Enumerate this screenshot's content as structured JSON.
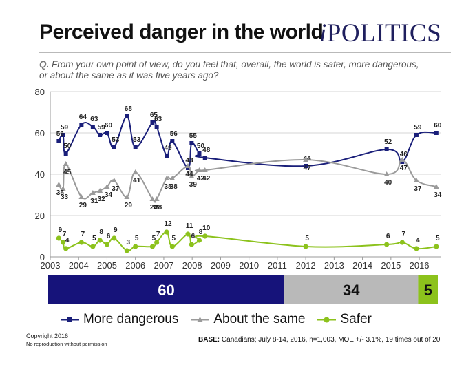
{
  "header": {
    "title": "Perceived danger in the world",
    "brand_i": "i",
    "brand_rest": "POLITICS",
    "question_label": "Q.",
    "question_text": "From your own point of view, do you feel that, overall, the world is safer, more dangerous, or about the same as it was five years ago?"
  },
  "chart_data": {
    "type": "line",
    "xlim": [
      2003,
      2016.75
    ],
    "ylim": [
      0,
      80
    ],
    "x_ticks": [
      "2003",
      "2004",
      "2005",
      "2006",
      "2007",
      "2008",
      "2009",
      "2010",
      "2011",
      "2012",
      "2013",
      "2014",
      "2015",
      "2016"
    ],
    "y_ticks": [
      "0",
      "20",
      "40",
      "60",
      "80"
    ],
    "grid": true,
    "legend_position": "bottom",
    "series": [
      {
        "name": "More dangerous",
        "color": "#1a1f7a",
        "marker": "square",
        "points": [
          [
            2003.3,
            56
          ],
          [
            2003.45,
            59
          ],
          [
            2003.55,
            50
          ],
          [
            2004.1,
            64
          ],
          [
            2004.5,
            63
          ],
          [
            2004.75,
            59
          ],
          [
            2005.0,
            60
          ],
          [
            2005.25,
            53
          ],
          [
            2005.7,
            68
          ],
          [
            2006.0,
            53
          ],
          [
            2006.6,
            65
          ],
          [
            2006.75,
            63
          ],
          [
            2007.1,
            49
          ],
          [
            2007.3,
            56
          ],
          [
            2007.85,
            43
          ],
          [
            2007.98,
            55
          ],
          [
            2008.25,
            50
          ],
          [
            2008.45,
            48
          ],
          [
            2012.0,
            44
          ],
          [
            2014.85,
            52
          ],
          [
            2015.4,
            46
          ],
          [
            2015.9,
            59
          ],
          [
            2016.6,
            60
          ]
        ],
        "labels": [
          [
            "56",
            2003.3,
            56
          ],
          [
            "59",
            2003.45,
            59
          ],
          [
            "50",
            2003.55,
            50
          ],
          [
            "64",
            2004.1,
            64
          ],
          [
            "63",
            2004.5,
            63
          ],
          [
            "59",
            2004.75,
            59
          ],
          [
            "60",
            2005.0,
            60
          ],
          [
            "53",
            2005.25,
            53
          ],
          [
            "68",
            2005.7,
            68
          ],
          [
            "53",
            2006.0,
            53
          ],
          [
            "65",
            2006.6,
            65
          ],
          [
            "63",
            2006.75,
            63
          ],
          [
            "49",
            2007.1,
            49
          ],
          [
            "56",
            2007.3,
            56
          ],
          [
            "43",
            2007.85,
            43
          ],
          [
            "55",
            2007.98,
            55
          ],
          [
            "50",
            2008.25,
            50
          ],
          [
            "48",
            2008.45,
            48
          ],
          [
            "44",
            2012.0,
            44
          ],
          [
            "52",
            2014.85,
            52
          ],
          [
            "46",
            2015.4,
            46
          ],
          [
            "59",
            2015.9,
            59
          ],
          [
            "60",
            2016.6,
            60
          ]
        ]
      },
      {
        "name": "About the same",
        "color": "#9a9a9a",
        "marker": "triangle",
        "points": [
          [
            2003.3,
            35
          ],
          [
            2003.45,
            33
          ],
          [
            2003.55,
            45
          ],
          [
            2004.1,
            29
          ],
          [
            2004.5,
            31
          ],
          [
            2004.75,
            32
          ],
          [
            2005.0,
            34
          ],
          [
            2005.25,
            37
          ],
          [
            2005.7,
            29
          ],
          [
            2006.0,
            41
          ],
          [
            2006.6,
            28
          ],
          [
            2006.75,
            28
          ],
          [
            2007.1,
            38
          ],
          [
            2007.3,
            38
          ],
          [
            2007.85,
            44
          ],
          [
            2007.98,
            39
          ],
          [
            2008.25,
            42
          ],
          [
            2008.45,
            42
          ],
          [
            2012.0,
            47
          ],
          [
            2014.85,
            40
          ],
          [
            2015.4,
            47
          ],
          [
            2015.9,
            37
          ],
          [
            2016.6,
            34
          ]
        ],
        "labels": [
          [
            "35",
            2003.3,
            35
          ],
          [
            "33",
            2003.45,
            33
          ],
          [
            "45",
            2003.55,
            45
          ],
          [
            "29",
            2004.1,
            29
          ],
          [
            "31",
            2004.5,
            31
          ],
          [
            "32",
            2004.75,
            32
          ],
          [
            "34",
            2005.0,
            34
          ],
          [
            "37",
            2005.25,
            37
          ],
          [
            "29",
            2005.7,
            29
          ],
          [
            "41",
            2006.0,
            41
          ],
          [
            "28",
            2006.6,
            28
          ],
          [
            "28",
            2006.75,
            28
          ],
          [
            "38",
            2007.1,
            38
          ],
          [
            "38",
            2007.3,
            38
          ],
          [
            "44",
            2007.85,
            44
          ],
          [
            "39",
            2007.98,
            39
          ],
          [
            "42",
            2008.25,
            42
          ],
          [
            "42",
            2008.45,
            42
          ],
          [
            "47",
            2012.0,
            47
          ],
          [
            "40",
            2014.85,
            40
          ],
          [
            "47",
            2015.4,
            47
          ],
          [
            "37",
            2015.9,
            37
          ],
          [
            "34",
            2016.6,
            34
          ]
        ]
      },
      {
        "name": "Safer",
        "color": "#8cc21c",
        "marker": "circle",
        "points": [
          [
            2003.3,
            9
          ],
          [
            2003.45,
            7
          ],
          [
            2003.55,
            4
          ],
          [
            2004.1,
            7
          ],
          [
            2004.5,
            5
          ],
          [
            2004.75,
            8
          ],
          [
            2005.0,
            6
          ],
          [
            2005.25,
            9
          ],
          [
            2005.7,
            3
          ],
          [
            2006.0,
            5
          ],
          [
            2006.6,
            5
          ],
          [
            2006.75,
            7
          ],
          [
            2007.1,
            12
          ],
          [
            2007.3,
            5
          ],
          [
            2007.85,
            11
          ],
          [
            2007.98,
            6
          ],
          [
            2008.25,
            8
          ],
          [
            2008.45,
            10
          ],
          [
            2012.0,
            5
          ],
          [
            2014.85,
            6
          ],
          [
            2015.4,
            7
          ],
          [
            2015.9,
            4
          ],
          [
            2016.6,
            5
          ]
        ],
        "labels": [
          [
            "9",
            2003.3,
            9
          ],
          [
            "7",
            2003.45,
            7
          ],
          [
            "4",
            2003.55,
            4
          ],
          [
            "7",
            2004.1,
            7
          ],
          [
            "5",
            2004.5,
            5
          ],
          [
            "8",
            2004.75,
            8
          ],
          [
            "6",
            2005.0,
            6
          ],
          [
            "9",
            2005.25,
            9
          ],
          [
            "3",
            2005.7,
            3
          ],
          [
            "5",
            2006.0,
            5
          ],
          [
            "5",
            2006.6,
            5
          ],
          [
            "7",
            2006.75,
            7
          ],
          [
            "12",
            2007.1,
            12
          ],
          [
            "5",
            2007.3,
            5
          ],
          [
            "11",
            2007.85,
            11
          ],
          [
            "6",
            2007.98,
            6
          ],
          [
            "8",
            2008.25,
            8
          ],
          [
            "10",
            2008.45,
            10
          ],
          [
            "5",
            2012.0,
            5
          ],
          [
            "6",
            2014.85,
            6
          ],
          [
            "7",
            2015.4,
            7
          ],
          [
            "4",
            2015.9,
            4
          ],
          [
            "5",
            2016.6,
            5
          ]
        ]
      }
    ],
    "stacked_bar": {
      "segments": [
        {
          "label": "60",
          "value": 60,
          "color": "#16137a",
          "text_color": "#ffffff"
        },
        {
          "label": "34",
          "value": 34,
          "color": "#b9b9b9",
          "text_color": "#111111"
        },
        {
          "label": "5",
          "value": 5,
          "color": "#8cc21c",
          "text_color": "#111111"
        }
      ]
    }
  },
  "legend": {
    "items": [
      {
        "label": "More dangerous",
        "color": "#1a1f7a",
        "marker": "square"
      },
      {
        "label": "About the same",
        "color": "#9a9a9a",
        "marker": "triangle"
      },
      {
        "label": "Safer",
        "color": "#8cc21c",
        "marker": "circle"
      }
    ]
  },
  "footer": {
    "copyright": "Copyright 2016",
    "no_repro": "No reproduction without permission",
    "base_label": "BASE:",
    "base_text": "Canadians; July 8-14, 2016, n=1,003, MOE +/- 3.1%, 19 times out of 20"
  }
}
